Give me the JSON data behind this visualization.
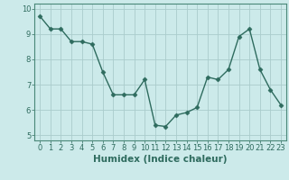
{
  "x": [
    0,
    1,
    2,
    3,
    4,
    5,
    6,
    7,
    8,
    9,
    10,
    11,
    12,
    13,
    14,
    15,
    16,
    17,
    18,
    19,
    20,
    21,
    22,
    23
  ],
  "y": [
    9.7,
    9.2,
    9.2,
    8.7,
    8.7,
    8.6,
    7.5,
    6.6,
    6.6,
    6.6,
    7.2,
    5.4,
    5.35,
    5.8,
    5.9,
    6.1,
    7.3,
    7.2,
    7.6,
    8.9,
    9.2,
    7.6,
    6.8,
    6.2
  ],
  "line_color": "#2e6b5e",
  "marker": "D",
  "marker_size": 2.5,
  "bg_color": "#cceaea",
  "grid_color": "#aacccc",
  "xlabel": "Humidex (Indice chaleur)",
  "xlim": [
    -0.5,
    23.5
  ],
  "ylim": [
    4.8,
    10.2
  ],
  "yticks": [
    5,
    6,
    7,
    8,
    9,
    10
  ],
  "xticks": [
    0,
    1,
    2,
    3,
    4,
    5,
    6,
    7,
    8,
    9,
    10,
    11,
    12,
    13,
    14,
    15,
    16,
    17,
    18,
    19,
    20,
    21,
    22,
    23
  ],
  "tick_fontsize": 6,
  "xlabel_fontsize": 7.5,
  "line_width": 1.0,
  "axis_color": "#3a7a6a",
  "spine_color": "#4a8878"
}
